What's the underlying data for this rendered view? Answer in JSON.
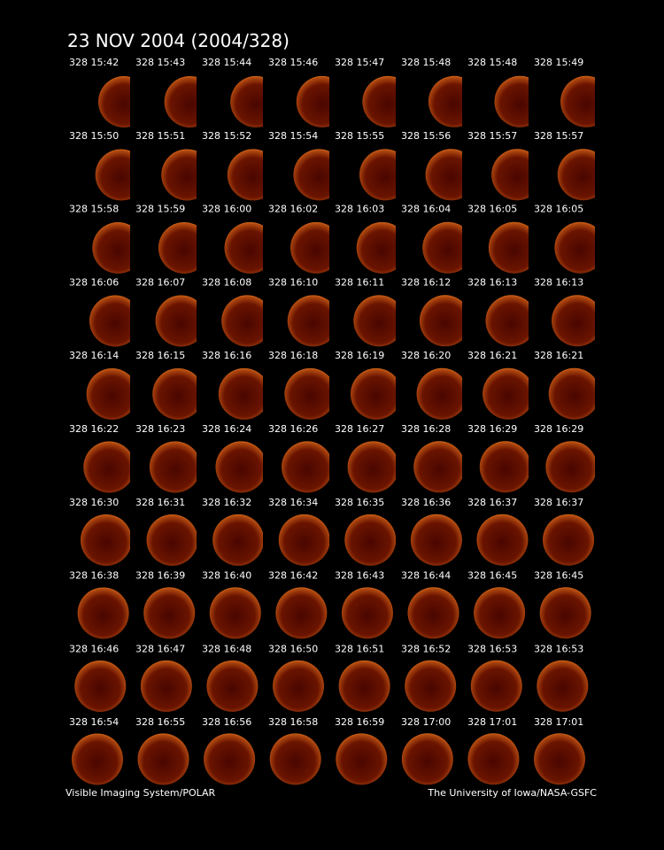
{
  "title": "23 NOV 2004  (2004/328)",
  "frames": [
    [
      "328 15:42",
      "328 15:43",
      "328 15:44",
      "328 15:46",
      "328 15:47",
      "328 15:48",
      "328 15:48",
      "328 15:49"
    ],
    [
      "328 15:50",
      "328 15:51",
      "328 15:52",
      "328 15:54",
      "328 15:55",
      "328 15:56",
      "328 15:57",
      "328 15:57"
    ],
    [
      "328 15:58",
      "328 15:59",
      "328 16:00",
      "328 16:02",
      "328 16:03",
      "328 16:04",
      "328 16:05",
      "328 16:05"
    ],
    [
      "328 16:06",
      "328 16:07",
      "328 16:08",
      "328 16:10",
      "328 16:11",
      "328 16:12",
      "328 16:13",
      "328 16:13"
    ],
    [
      "328 16:14",
      "328 16:15",
      "328 16:16",
      "328 16:18",
      "328 16:19",
      "328 16:20",
      "328 16:21",
      "328 16:21"
    ],
    [
      "328 16:22",
      "328 16:23",
      "328 16:24",
      "328 16:26",
      "328 16:27",
      "328 16:28",
      "328 16:29",
      "328 16:29"
    ],
    [
      "328 16:30",
      "328 16:31",
      "328 16:32",
      "328 16:34",
      "328 16:35",
      "328 16:36",
      "328 16:37",
      "328 16:37"
    ],
    [
      "328 16:38",
      "328 16:39",
      "328 16:40",
      "328 16:42",
      "328 16:43",
      "328 16:44",
      "328 16:45",
      "328 16:45"
    ],
    [
      "328 16:46",
      "328 16:47",
      "328 16:48",
      "328 16:50",
      "328 16:51",
      "328 16:52",
      "328 16:53",
      "328 16:53"
    ],
    [
      "328 16:54",
      "328 16:55",
      "328 16:56",
      "328 16:58",
      "328 16:59",
      "328 17:00",
      "328 17:01",
      "328 17:01"
    ]
  ],
  "footer": {
    "left": "Visible Imaging System/POLAR",
    "right": "The University of Iowa/NASA-GSFC"
  }
}
